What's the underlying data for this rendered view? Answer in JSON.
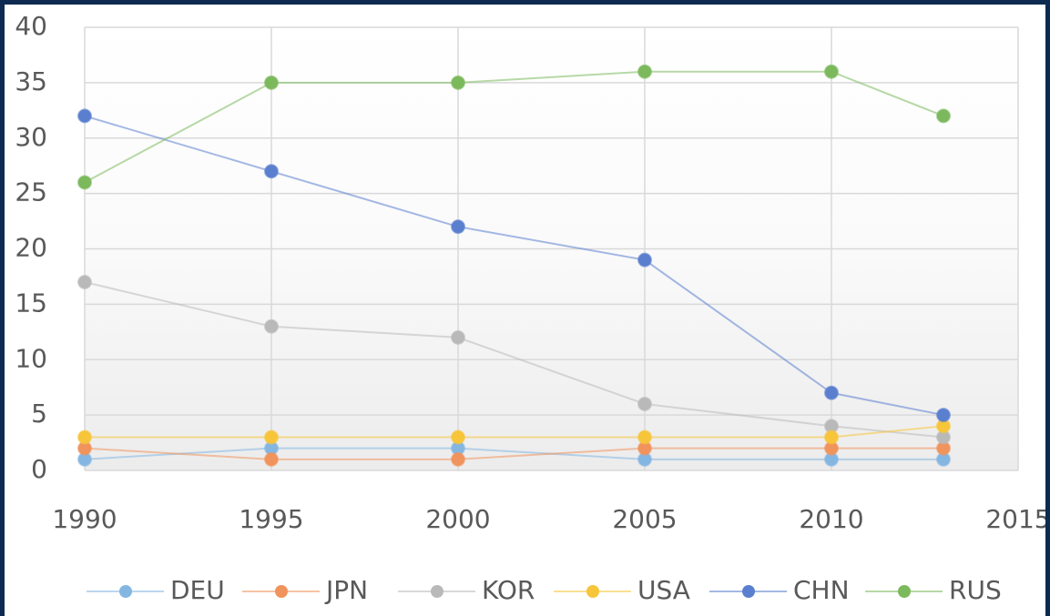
{
  "chart_data": {
    "type": "line",
    "x": [
      1990,
      1995,
      2000,
      2005,
      2010,
      2013
    ],
    "series": [
      {
        "name": "DEU",
        "color": "#84b6e2",
        "values": [
          1,
          2,
          2,
          1,
          1,
          1
        ]
      },
      {
        "name": "JPN",
        "color": "#f0935c",
        "values": [
          2,
          1,
          1,
          2,
          2,
          2
        ]
      },
      {
        "name": "KOR",
        "color": "#b9b9b9",
        "values": [
          17,
          13,
          12,
          6,
          4,
          3
        ]
      },
      {
        "name": "USA",
        "color": "#f7c53a",
        "values": [
          3,
          3,
          3,
          3,
          3,
          4
        ]
      },
      {
        "name": "CHN",
        "color": "#5b7fcf",
        "values": [
          32,
          27,
          22,
          19,
          7,
          5
        ]
      },
      {
        "name": "RUS",
        "color": "#7bb95c",
        "values": [
          26,
          35,
          35,
          36,
          36,
          32
        ]
      }
    ],
    "xlim": [
      1990,
      2015
    ],
    "xticks": [
      1990,
      1995,
      2000,
      2005,
      2010,
      2015
    ],
    "ylim": [
      0,
      40
    ],
    "yticks": [
      0,
      5,
      10,
      15,
      20,
      25,
      30,
      35,
      40
    ],
    "grid": true,
    "legend": "bottom"
  }
}
